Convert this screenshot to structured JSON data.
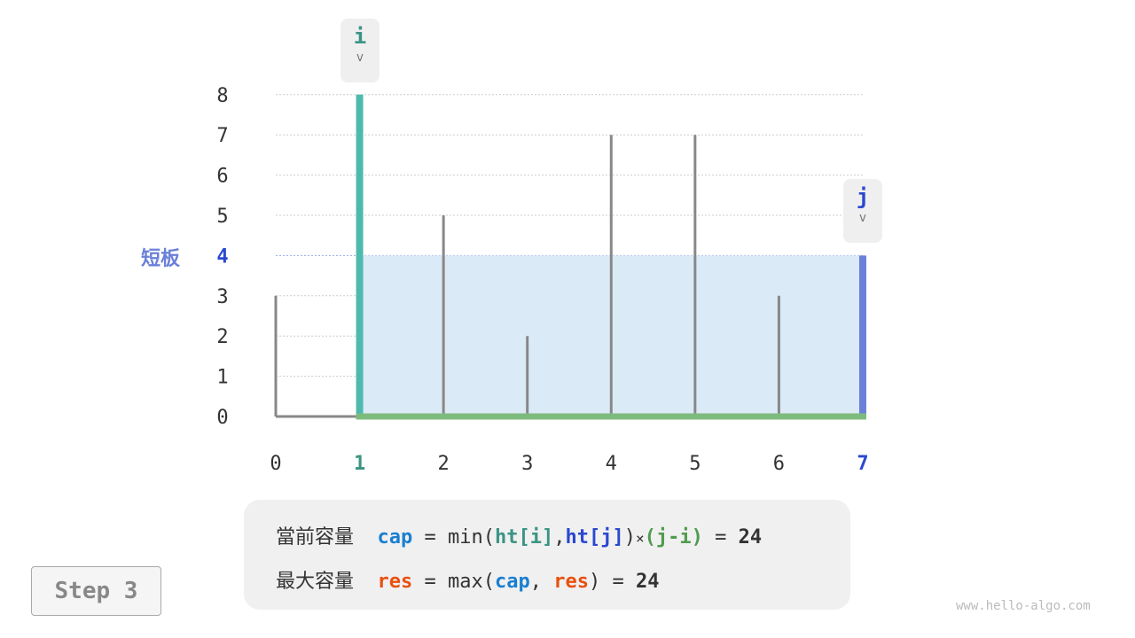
{
  "diagram": {
    "heights": [
      3,
      8,
      5,
      2,
      7,
      7,
      3,
      4
    ],
    "x_labels": [
      "0",
      "1",
      "2",
      "3",
      "4",
      "5",
      "6",
      "7"
    ],
    "y_labels": [
      "0",
      "1",
      "2",
      "3",
      "4",
      "5",
      "6",
      "7",
      "8"
    ],
    "i": 1,
    "j": 7,
    "short_board_value": 4,
    "pointer_i": "i",
    "pointer_j": "j",
    "pointer_arrow": "v",
    "short_board_label": "短板",
    "colors": {
      "bar": "#888888",
      "i": "#4fb9ae",
      "j": "#6b80d9",
      "width": "#7dbb7d",
      "area": "#dbeaf7",
      "grid": "#cccccc",
      "short_line": "#9aa8e8"
    }
  },
  "formula": {
    "line1": {
      "label": "當前容量",
      "cap": "cap",
      "eq": "=",
      "min": "min(",
      "hti": "ht[i]",
      "comma": ",",
      "htj": "ht[j]",
      "close": ")",
      "times": "×",
      "ji": "(j-i)",
      "eq2": "=",
      "result": "24"
    },
    "line2": {
      "label": "最大容量",
      "res": "res",
      "eq": "=",
      "max": "max(",
      "cap": "cap",
      "comma": ",",
      "res2": "res",
      "close": ")",
      "eq2": "=",
      "result": "24"
    }
  },
  "step_label": "Step 3",
  "watermark": "www.hello-algo.com"
}
